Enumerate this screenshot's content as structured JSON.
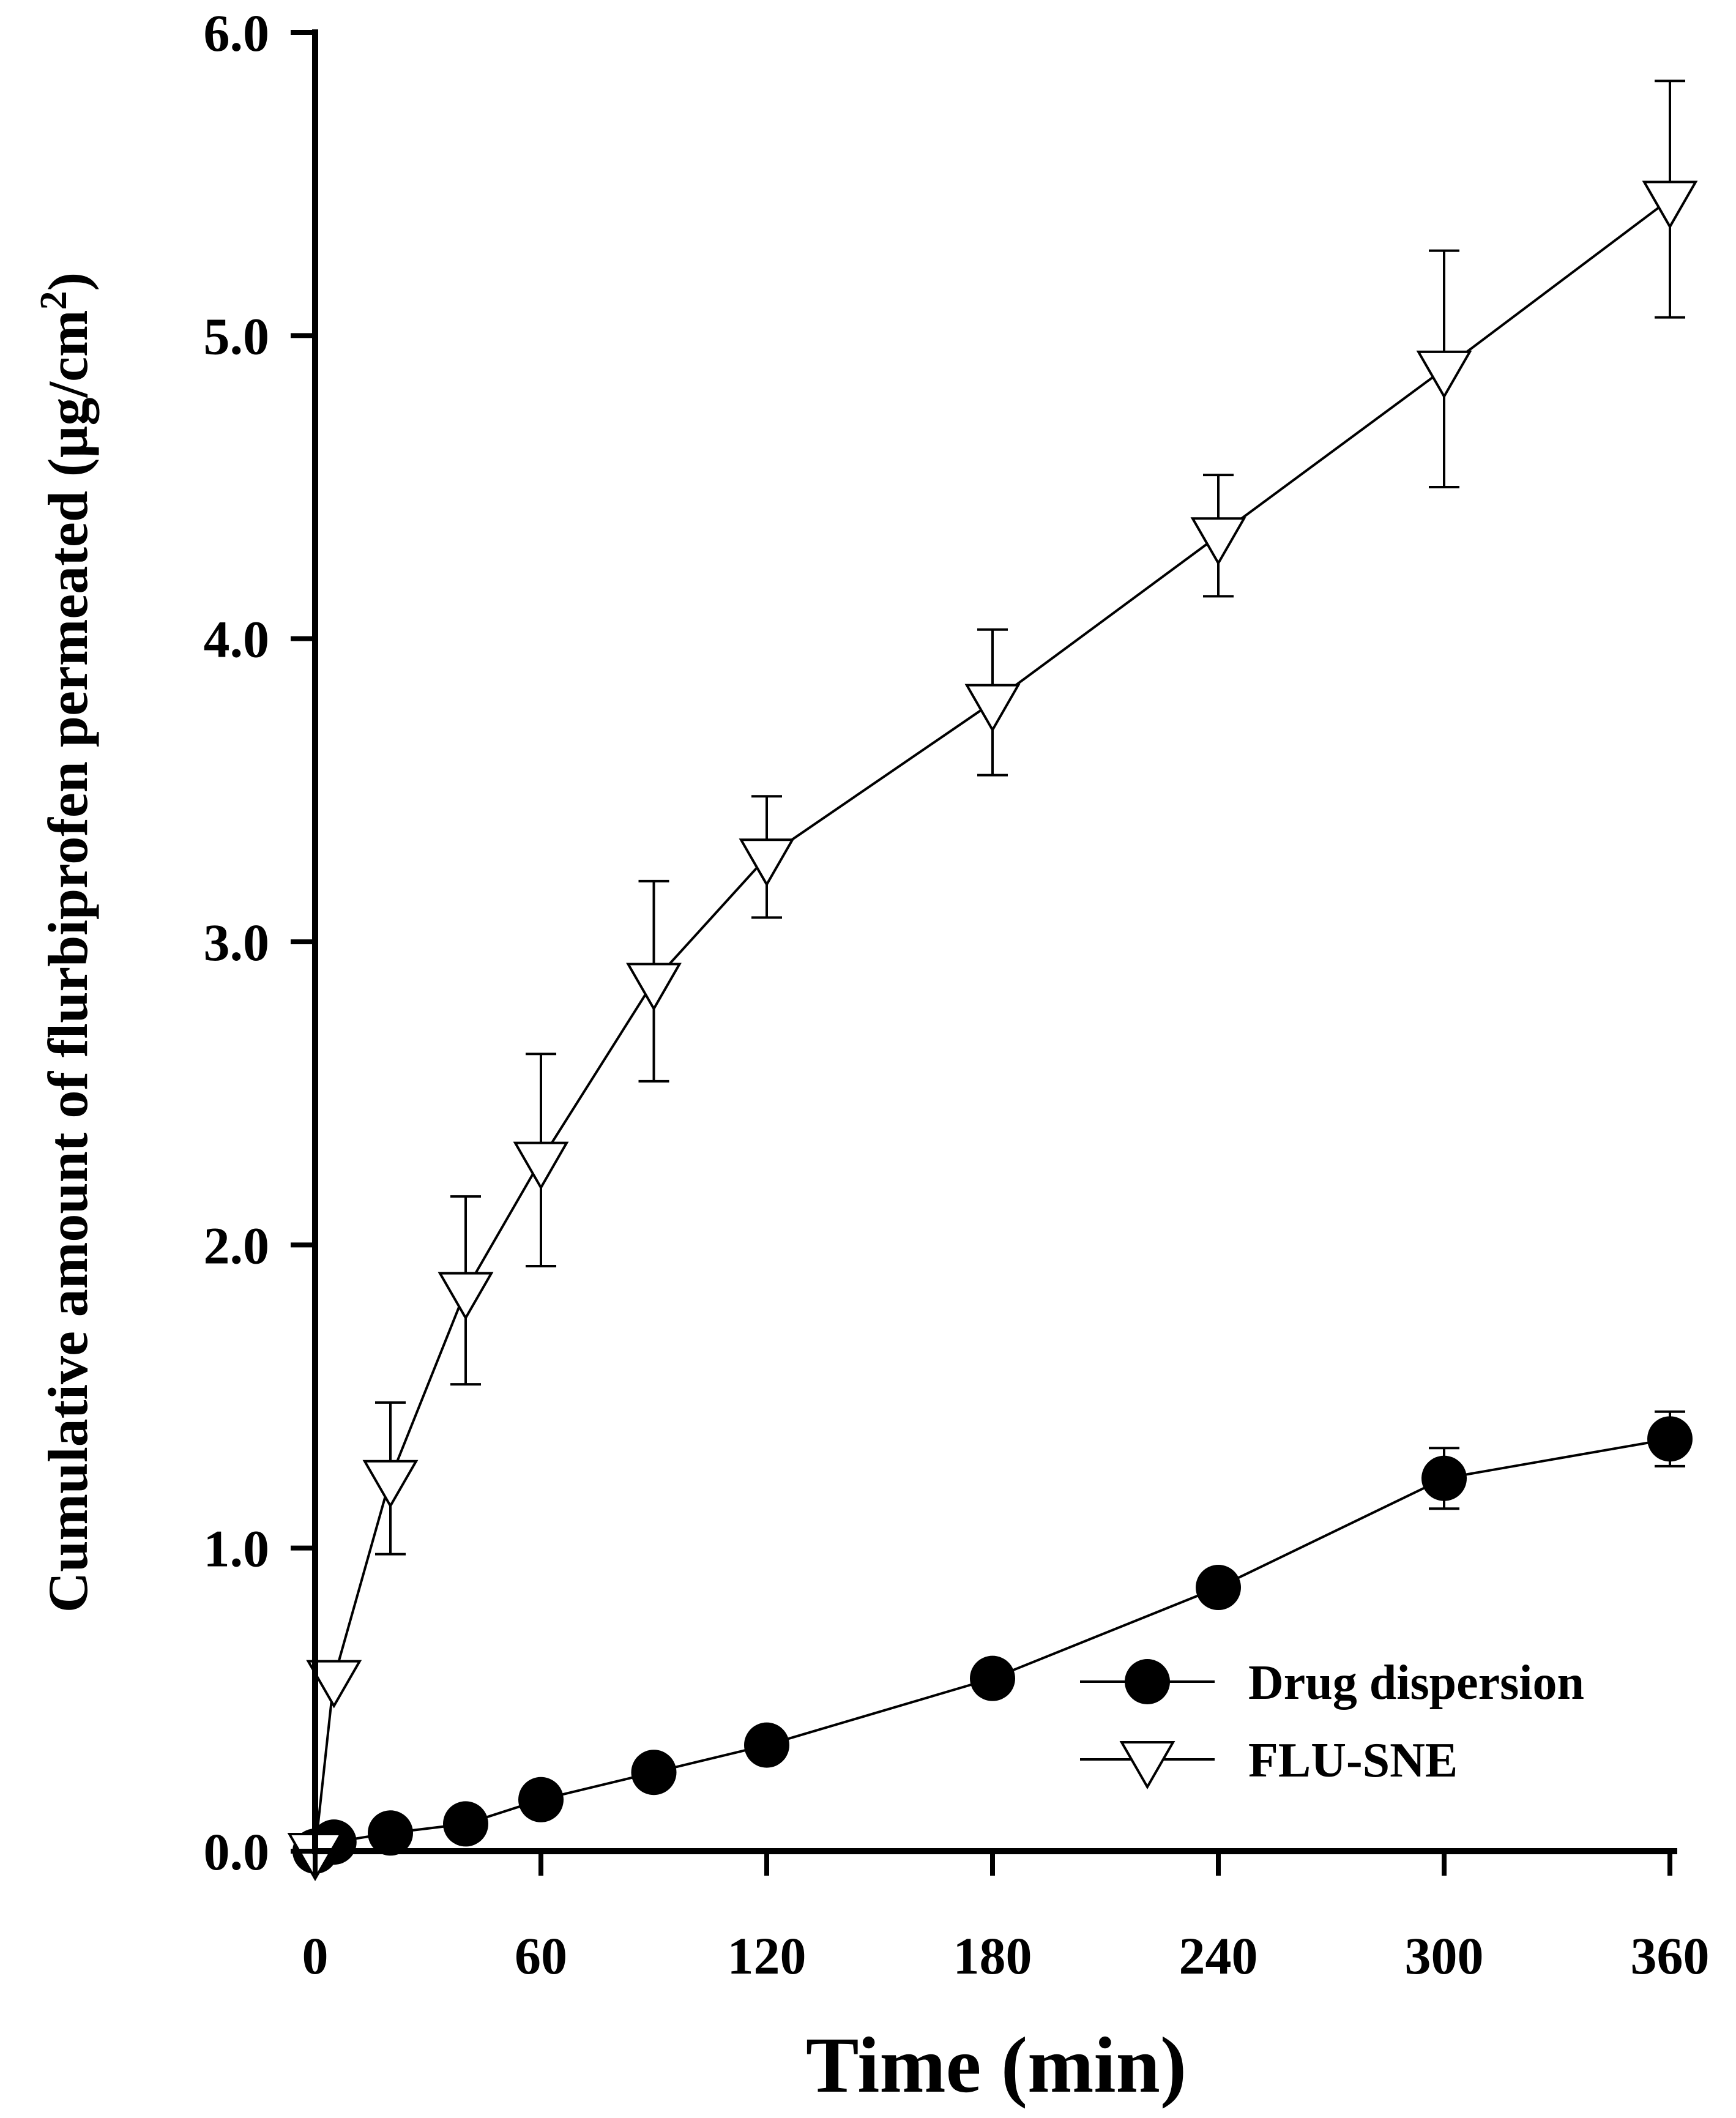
{
  "chart_data": {
    "type": "line",
    "title": "",
    "xlabel": "Time (min)",
    "ylabel": {
      "main": "Cumulative amount of flurbiprofen permeated (µg/cm",
      "superscript": "2",
      "close": ")"
    },
    "xlim": [
      0,
      360
    ],
    "ylim": [
      0,
      6
    ],
    "xticks": [
      0,
      60,
      120,
      180,
      240,
      300,
      360
    ],
    "xtick_labels": [
      "0",
      "60",
      "120",
      "180",
      "240",
      "300",
      "360"
    ],
    "yticks": [
      0,
      1,
      2,
      3,
      4,
      5,
      6
    ],
    "ytick_labels": [
      "0.0",
      "1.0",
      "2.0",
      "3.0",
      "4.0",
      "5.0",
      "6.0"
    ],
    "grid": false,
    "legend_position": "bottom-right",
    "series": [
      {
        "name": "Drug dispersion",
        "marker": "filled-circle",
        "color": "#000000",
        "x": [
          0,
          5,
          20,
          40,
          60,
          90,
          120,
          180,
          240,
          300,
          360
        ],
        "y": [
          0,
          0.03,
          0.06,
          0.09,
          0.17,
          0.26,
          0.35,
          0.57,
          0.87,
          1.23,
          1.36
        ],
        "error": [
          0,
          0,
          0,
          0,
          0,
          0,
          0,
          0,
          0,
          0.1,
          0.09
        ]
      },
      {
        "name": "FLU-SNE",
        "marker": "open-triangle-down",
        "color": "#000000",
        "x": [
          0,
          5,
          20,
          40,
          60,
          90,
          120,
          180,
          240,
          300,
          360
        ],
        "y": [
          0,
          0.57,
          1.23,
          1.85,
          2.28,
          2.87,
          3.28,
          3.79,
          4.34,
          4.89,
          5.45
        ],
        "error": [
          0,
          0,
          0.25,
          0.31,
          0.35,
          0.33,
          0.2,
          0.24,
          0.2,
          0.39,
          0.39
        ]
      }
    ]
  }
}
